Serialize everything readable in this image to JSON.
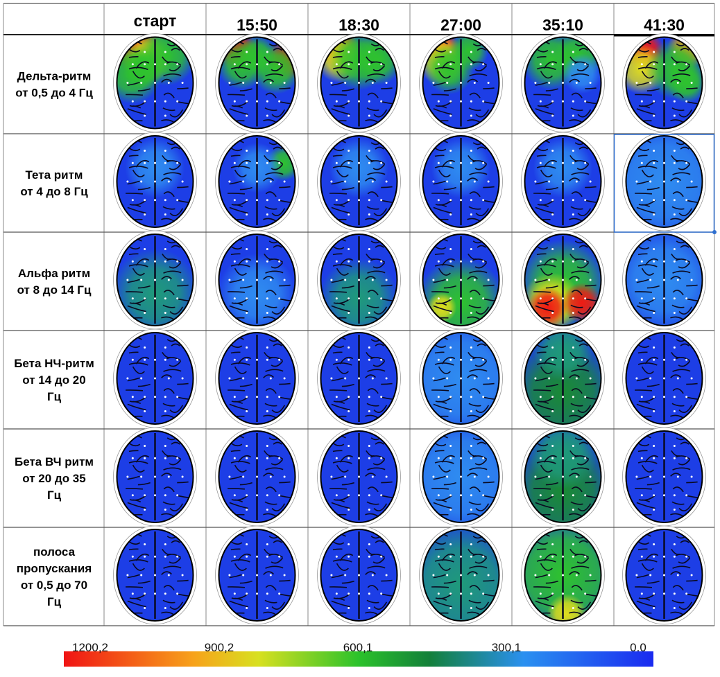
{
  "table": {
    "header": [
      "старт",
      "15:50",
      "18:30",
      "27:00",
      "35:10",
      "41:30"
    ],
    "rows": [
      {
        "label": [
          "Дельта-ритм",
          "от 0,5 до 4 Гц"
        ]
      },
      {
        "label": [
          "Тета ритм",
          "от 4 до 8 Гц"
        ]
      },
      {
        "label": [
          "Альфа ритм",
          "от 8 до 14 Гц"
        ]
      },
      {
        "label": [
          "Бета НЧ-ритм",
          "от 14 до 20",
          "Гц"
        ]
      },
      {
        "label": [
          "Бета ВЧ ритм",
          "от 20 до 35",
          "Гц"
        ]
      },
      {
        "label": [
          "полоса",
          "пропускания",
          "от 0,5 до 70",
          "Гц"
        ]
      }
    ]
  },
  "colorbar": {
    "labels": [
      "1200,2",
      "900,2",
      "600,1",
      "300,1",
      "0.0"
    ]
  }
}
